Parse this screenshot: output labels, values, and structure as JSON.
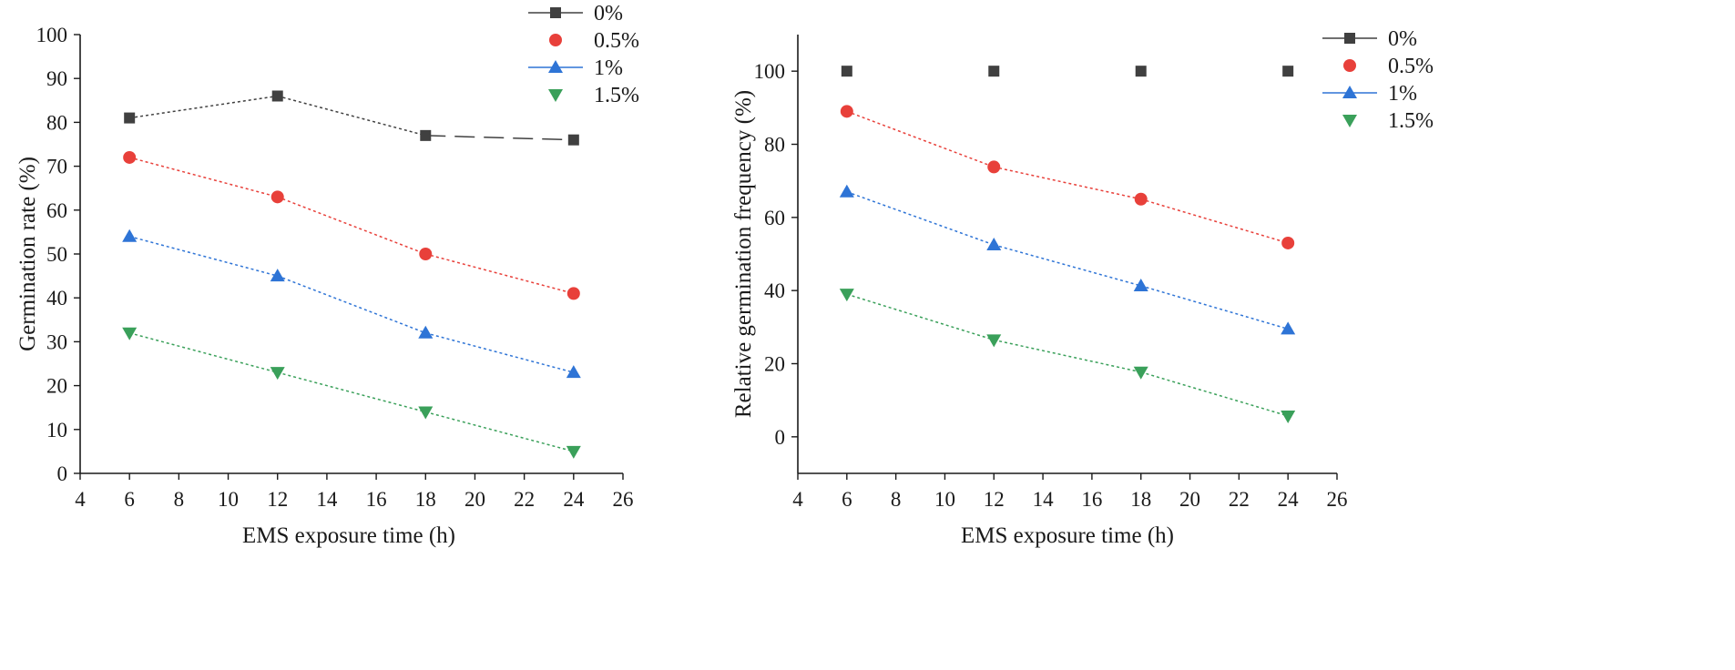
{
  "chart_data": [
    {
      "type": "line",
      "xlabel": "EMS exposure time (h)",
      "ylabel": "Germination rate (%)",
      "xlim": [
        4,
        26
      ],
      "ylim": [
        0,
        100
      ],
      "xticks": [
        4,
        6,
        8,
        10,
        12,
        14,
        16,
        18,
        20,
        22,
        24,
        26
      ],
      "yticks": [
        0,
        10,
        20,
        30,
        40,
        50,
        60,
        70,
        80,
        90,
        100
      ],
      "x": [
        6,
        12,
        18,
        24
      ],
      "legend_position": "top-right",
      "series": [
        {
          "name": "0%",
          "marker": "square",
          "color": "#404040",
          "values": [
            81,
            86,
            77,
            76
          ]
        },
        {
          "name": "0.5%",
          "marker": "circle",
          "color": "#e8403a",
          "values": [
            72,
            63,
            50,
            41
          ]
        },
        {
          "name": "1%",
          "marker": "triangle-up",
          "color": "#2e74d6",
          "values": [
            54,
            45,
            32,
            23
          ]
        },
        {
          "name": "1.5%",
          "marker": "triangle-down",
          "color": "#3aa05a",
          "values": [
            32,
            23,
            14,
            5
          ]
        }
      ]
    },
    {
      "type": "line",
      "xlabel": "EMS exposure time (h)",
      "ylabel": "Relative germination frequency (%)",
      "xlim": [
        4,
        26
      ],
      "ylim": [
        -10,
        110
      ],
      "xticks": [
        4,
        6,
        8,
        10,
        12,
        14,
        16,
        18,
        20,
        22,
        24,
        26
      ],
      "yticks": [
        0,
        20,
        40,
        60,
        80,
        100
      ],
      "x": [
        6,
        12,
        18,
        24
      ],
      "legend_position": "top-right",
      "series": [
        {
          "name": "0%",
          "marker": "square",
          "color": "#404040",
          "values": [
            100,
            100,
            100,
            100
          ],
          "show_line": false
        },
        {
          "name": "0.5%",
          "marker": "circle",
          "color": "#e8403a",
          "values": [
            89,
            73.8,
            65,
            53
          ]
        },
        {
          "name": "1%",
          "marker": "triangle-up",
          "color": "#2e74d6",
          "values": [
            67,
            52.5,
            41.3,
            29.5
          ]
        },
        {
          "name": "1.5%",
          "marker": "triangle-down",
          "color": "#3aa05a",
          "values": [
            39,
            26.5,
            17.7,
            5.7
          ]
        }
      ]
    }
  ]
}
